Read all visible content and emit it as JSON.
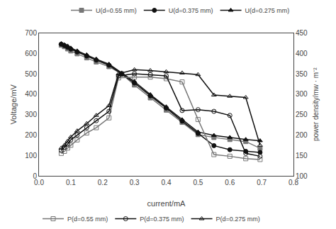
{
  "chart_data": {
    "type": "line",
    "xlabel": "current/mA",
    "ylabel": "Voltage/mV",
    "y2label": "power density/mw · m⁻²",
    "xlim": [
      0.0,
      0.8
    ],
    "xticks": [
      {
        "value": 0.0,
        "label": "0.0"
      },
      0.1,
      0.2,
      0.3,
      0.4,
      0.5,
      0.6,
      0.7,
      0.8
    ],
    "ylim": [
      0,
      700
    ],
    "yticks": [
      0,
      100,
      200,
      300,
      400,
      500,
      600,
      700
    ],
    "y2lim": [
      100,
      450
    ],
    "y2ticks": [
      100,
      150,
      200,
      250,
      300,
      350,
      400,
      450
    ],
    "grid": false,
    "series": [
      {
        "name": "U(d=0.55 mm)",
        "color": "#777777",
        "marker": "square",
        "legend": "upper right",
        "x": [
          0.07,
          0.08,
          0.09,
          0.1,
          0.12,
          0.15,
          0.18,
          0.22,
          0.26,
          0.3,
          0.35,
          0.4,
          0.45,
          0.5,
          0.55,
          0.6,
          0.65,
          0.695
        ],
        "values": [
          640,
          633,
          622,
          612,
          598,
          578,
          558,
          535,
          500,
          445,
          382,
          322,
          262,
          202,
          188,
          178,
          168,
          135
        ]
      },
      {
        "name": "U(d=0.375 mm)",
        "color": "#111111",
        "marker": "circle",
        "legend": "upper right",
        "x": [
          0.07,
          0.08,
          0.09,
          0.1,
          0.12,
          0.15,
          0.18,
          0.22,
          0.26,
          0.3,
          0.35,
          0.4,
          0.45,
          0.5,
          0.55,
          0.6,
          0.65,
          0.695
        ],
        "values": [
          645,
          638,
          630,
          621,
          607,
          587,
          567,
          542,
          498,
          455,
          392,
          332,
          268,
          208,
          148,
          128,
          120,
          115
        ]
      },
      {
        "name": "U(d=0.275 mm)",
        "color": "#111111",
        "marker": "triangle-up",
        "legend": "upper right",
        "x": [
          0.07,
          0.08,
          0.09,
          0.1,
          0.12,
          0.15,
          0.18,
          0.22,
          0.26,
          0.3,
          0.35,
          0.4,
          0.45,
          0.5,
          0.55,
          0.6,
          0.65,
          0.695
        ],
        "values": [
          648,
          642,
          636,
          626,
          612,
          593,
          572,
          547,
          504,
          462,
          398,
          338,
          275,
          215,
          198,
          188,
          178,
          172
        ]
      },
      {
        "name": "P(d=0.55 mm)",
        "color": "#777777",
        "marker": "square-open",
        "axis": "y2",
        "legend": "lower left",
        "x": [
          0.07,
          0.08,
          0.09,
          0.1,
          0.12,
          0.15,
          0.18,
          0.22,
          0.25,
          0.3,
          0.35,
          0.4,
          0.45,
          0.5,
          0.55,
          0.6,
          0.65,
          0.695
        ],
        "values": [
          155,
          160,
          168,
          175,
          188,
          205,
          218,
          242,
          340,
          342,
          342,
          338,
          330,
          238,
          152,
          148,
          142,
          140
        ]
      },
      {
        "name": "P(d=0.375 mm)",
        "color": "#111111",
        "marker": "circle-open",
        "axis": "y2",
        "legend": "lower left",
        "x": [
          0.07,
          0.08,
          0.09,
          0.1,
          0.12,
          0.15,
          0.18,
          0.22,
          0.25,
          0.3,
          0.35,
          0.4,
          0.45,
          0.5,
          0.55,
          0.6,
          0.65,
          0.695
        ],
        "values": [
          162,
          170,
          178,
          188,
          200,
          218,
          235,
          258,
          345,
          350,
          348,
          345,
          260,
          262,
          258,
          248,
          155,
          148
        ]
      },
      {
        "name": "P(d=0.275 mm)",
        "color": "#111111",
        "marker": "triangle-up-open",
        "axis": "y2",
        "legend": "lower left",
        "x": [
          0.07,
          0.08,
          0.09,
          0.1,
          0.12,
          0.15,
          0.18,
          0.22,
          0.25,
          0.3,
          0.35,
          0.4,
          0.45,
          0.5,
          0.55,
          0.6,
          0.65,
          0.695
        ],
        "values": [
          168,
          175,
          185,
          195,
          210,
          228,
          248,
          272,
          350,
          360,
          358,
          355,
          352,
          348,
          298,
          295,
          292,
          175
        ]
      }
    ]
  }
}
